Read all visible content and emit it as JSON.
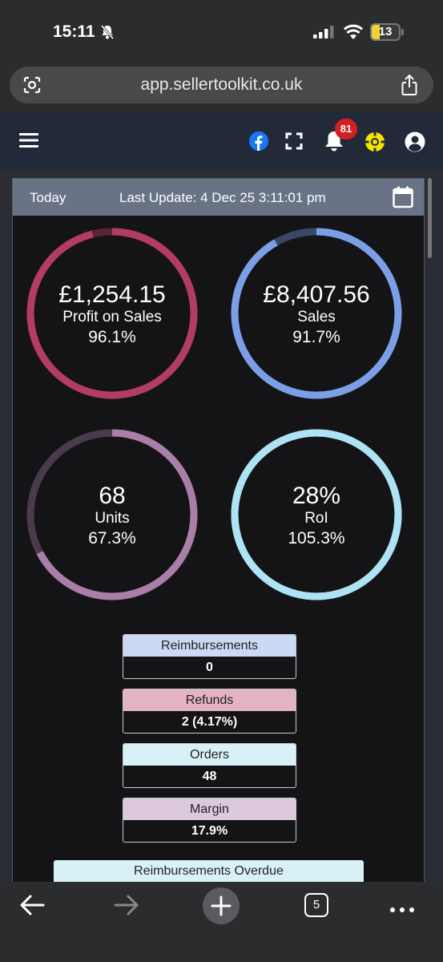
{
  "status_bar": {
    "time": "15:11",
    "battery": "13"
  },
  "browser": {
    "url": "app.sellertoolkit.co.uk",
    "tab_count": "5"
  },
  "header": {
    "notification_count": "81"
  },
  "dashboard": {
    "period": "Today",
    "last_update": "Last Update: 4 Dec 25 3:11:01 pm",
    "gauges": [
      {
        "value": "£1,254.15",
        "label": "Profit on Sales",
        "percent": "96.1%",
        "fill_fraction": 0.961,
        "color": "#b23c66",
        "track_color": "#5a2535"
      },
      {
        "value": "£8,407.56",
        "label": "Sales",
        "percent": "91.7%",
        "fill_fraction": 0.917,
        "color": "#7b9fe6",
        "track_color": "#3a4866"
      },
      {
        "value": "68",
        "label": "Units",
        "percent": "67.3%",
        "fill_fraction": 0.673,
        "color": "#a97ea9",
        "track_color": "#4a3a4c"
      },
      {
        "value": "28%",
        "label": "RoI",
        "percent": "105.3%",
        "fill_fraction": 1.0,
        "color": "#aee3f3",
        "track_color": "#aee3f3"
      }
    ],
    "stats": [
      {
        "title": "Reimbursements",
        "value": "0",
        "color": "#ccd9f5"
      },
      {
        "title": "Refunds",
        "value": "2 (4.17%)",
        "color": "#e3b3c2"
      },
      {
        "title": "Orders",
        "value": "48",
        "color": "#d8f1f7"
      },
      {
        "title": "Margin",
        "value": "17.9%",
        "color": "#dcc9de"
      }
    ],
    "overdue_title": "Reimbursements Overdue"
  }
}
